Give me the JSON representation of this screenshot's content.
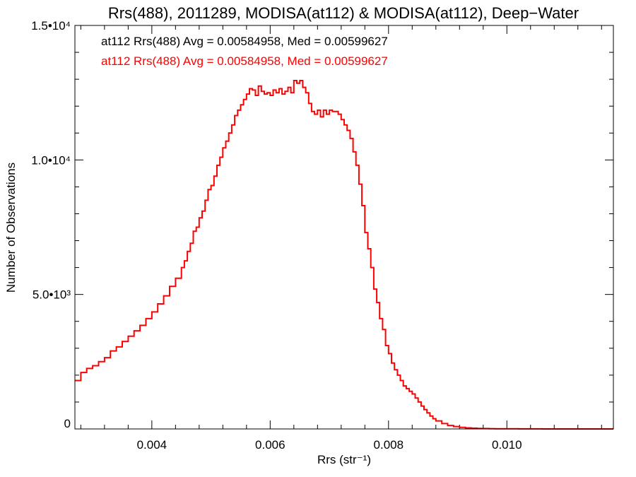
{
  "chart_data": {
    "type": "line",
    "title": "Rrs(488), 2011289, MODISA(at112) & MODISA(at112), Deep−Water",
    "xlabel": "Rrs (str⁻¹)",
    "ylabel": "Number of Observations",
    "xlim": [
      0.0027,
      0.0118
    ],
    "ylim": [
      0,
      15000
    ],
    "x_ticks": [
      {
        "value": 0.004,
        "label": "0.004"
      },
      {
        "value": 0.006,
        "label": "0.006"
      },
      {
        "value": 0.008,
        "label": "0.008"
      },
      {
        "value": 0.01,
        "label": "0.010"
      }
    ],
    "y_ticks": [
      {
        "value": 0,
        "label": "0"
      },
      {
        "value": 5000,
        "label": "5.0•10³"
      },
      {
        "value": 10000,
        "label": "1.0•10⁴"
      },
      {
        "value": 15000,
        "label": "1.5•10⁴"
      }
    ],
    "grid": false,
    "annotations": [
      {
        "text": "at112 Rrs(488) Avg = 0.00584958, Med = 0.00599627",
        "color": "#000000"
      },
      {
        "text": "at112 Rrs(488) Avg = 0.00584958, Med = 0.00599627",
        "color": "#ff0000"
      }
    ],
    "series": [
      {
        "color": "#ff0000",
        "x": [
          0.0027,
          0.0028,
          0.0029,
          0.003,
          0.0031,
          0.0032,
          0.0033,
          0.0034,
          0.0035,
          0.0036,
          0.0037,
          0.0038,
          0.0039,
          0.004,
          0.0041,
          0.0042,
          0.0043,
          0.0044,
          0.0045,
          0.00455,
          0.0046,
          0.00465,
          0.0047,
          0.00475,
          0.0048,
          0.00485,
          0.0049,
          0.00495,
          0.005,
          0.00505,
          0.0051,
          0.00515,
          0.0052,
          0.00525,
          0.0053,
          0.00535,
          0.0054,
          0.00545,
          0.0055,
          0.00555,
          0.0056,
          0.00565,
          0.0057,
          0.00575,
          0.0058,
          0.00585,
          0.0059,
          0.00595,
          0.006,
          0.00605,
          0.0061,
          0.00615,
          0.0062,
          0.00625,
          0.0063,
          0.00635,
          0.0064,
          0.00645,
          0.0065,
          0.00655,
          0.0066,
          0.00665,
          0.0067,
          0.00675,
          0.0068,
          0.00685,
          0.0069,
          0.00695,
          0.007,
          0.00705,
          0.0071,
          0.00715,
          0.0072,
          0.00725,
          0.0073,
          0.00735,
          0.0074,
          0.00745,
          0.0075,
          0.00755,
          0.0076,
          0.00765,
          0.0077,
          0.00775,
          0.0078,
          0.00785,
          0.0079,
          0.00795,
          0.008,
          0.00805,
          0.0081,
          0.00815,
          0.0082,
          0.00825,
          0.0083,
          0.00835,
          0.0084,
          0.00845,
          0.0085,
          0.00855,
          0.0086,
          0.00865,
          0.0087,
          0.00875,
          0.0088,
          0.0089,
          0.009,
          0.0091,
          0.0092,
          0.0093,
          0.0094,
          0.0095,
          0.0096,
          0.0097,
          0.0098,
          0.01,
          0.0102,
          0.0104,
          0.0106,
          0.0108,
          0.011,
          0.0112,
          0.0114,
          0.0116,
          0.0118
        ],
        "y": [
          1800,
          2100,
          2250,
          2350,
          2500,
          2650,
          2900,
          3050,
          3250,
          3450,
          3650,
          3850,
          4100,
          4350,
          4650,
          4950,
          5300,
          5600,
          6000,
          6250,
          6600,
          6900,
          7350,
          7500,
          7850,
          8100,
          8500,
          8900,
          9050,
          9400,
          9800,
          10100,
          10450,
          10700,
          11000,
          11300,
          11650,
          11850,
          12050,
          12250,
          12450,
          12650,
          12600,
          12400,
          12750,
          12550,
          12450,
          12500,
          12400,
          12600,
          12500,
          12650,
          12450,
          12550,
          12700,
          12500,
          12950,
          12850,
          12950,
          12700,
          12500,
          12100,
          11800,
          11700,
          11850,
          11600,
          11850,
          11700,
          11850,
          11800,
          11800,
          11700,
          11500,
          11300,
          11100,
          10800,
          10300,
          9800,
          9100,
          8300,
          7300,
          6700,
          6000,
          5200,
          4700,
          4100,
          3700,
          3100,
          2800,
          2450,
          2200,
          2000,
          1800,
          1600,
          1500,
          1400,
          1300,
          1150,
          1000,
          850,
          720,
          600,
          480,
          380,
          300,
          200,
          130,
          90,
          60,
          40,
          30,
          20,
          15,
          10,
          8,
          5,
          3,
          2,
          1,
          1,
          0,
          0,
          0,
          0,
          0
        ]
      }
    ]
  }
}
